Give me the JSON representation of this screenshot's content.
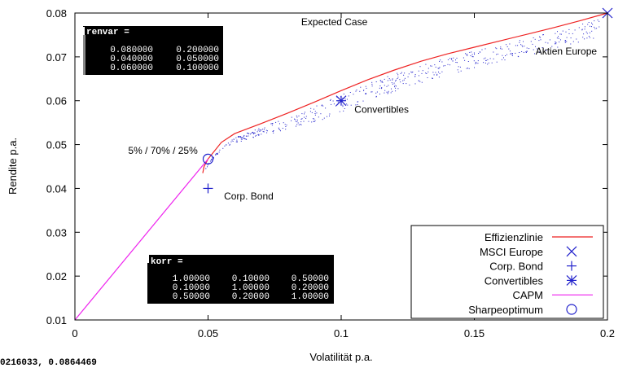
{
  "status_text": "0216033, 0.0864469",
  "chart_data": {
    "type": "line",
    "title": "Expected Case",
    "xlabel": "Volatilität p.a.",
    "ylabel": "Rendite p.a.",
    "xlim": [
      0,
      0.2
    ],
    "ylim": [
      0.01,
      0.08
    ],
    "x_ticks": [
      0,
      0.05,
      0.1,
      0.15,
      0.2
    ],
    "x_tick_labels": [
      "0",
      "0.05",
      "0.1",
      "0.15",
      "0.2"
    ],
    "y_ticks": [
      0.01,
      0.02,
      0.03,
      0.04,
      0.05,
      0.06,
      0.07,
      0.08
    ],
    "y_tick_labels": [
      "0.01",
      "0.02",
      "0.03",
      "0.04",
      "0.05",
      "0.06",
      "0.07",
      "0.08"
    ],
    "colors": {
      "efficient": "#ee2222",
      "asset": "#2222cc",
      "capm": "#ee22ee",
      "cloud": "#2222cc"
    },
    "series": [
      {
        "name": "Effizienzlinie",
        "kind": "line",
        "color": "#ee2222",
        "x": [
          0.048,
          0.0485,
          0.05,
          0.055,
          0.06,
          0.07,
          0.08,
          0.09,
          0.1,
          0.11,
          0.12,
          0.13,
          0.14,
          0.15,
          0.16,
          0.17,
          0.18,
          0.19,
          0.2
        ],
        "y": [
          0.0435,
          0.045,
          0.0467,
          0.0505,
          0.0525,
          0.0548,
          0.0572,
          0.0597,
          0.0623,
          0.0648,
          0.067,
          0.069,
          0.0707,
          0.0722,
          0.0737,
          0.0752,
          0.0767,
          0.0783,
          0.08
        ]
      },
      {
        "name": "MSCI Europe",
        "kind": "point",
        "marker": "x",
        "color": "#2222cc",
        "x": [
          0.2
        ],
        "y": [
          0.08
        ]
      },
      {
        "name": "Corp. Bond",
        "kind": "point",
        "marker": "plus",
        "color": "#2222cc",
        "x": [
          0.05
        ],
        "y": [
          0.04
        ]
      },
      {
        "name": "Convertibles",
        "kind": "point",
        "marker": "star",
        "color": "#2222cc",
        "x": [
          0.1
        ],
        "y": [
          0.06
        ]
      },
      {
        "name": "CAPM",
        "kind": "line",
        "color": "#ee22ee",
        "x": [
          0,
          0.05
        ],
        "y": [
          0.01,
          0.0467
        ]
      },
      {
        "name": "Sharpeoptimum",
        "kind": "point",
        "marker": "circle",
        "color": "#2222cc",
        "x": [
          0.05
        ],
        "y": [
          0.0467
        ]
      }
    ],
    "annotations": [
      {
        "text": "Expected Case",
        "x": 0.085,
        "y": 0.0772
      },
      {
        "text": "Aktien Europe",
        "x": 0.173,
        "y": 0.0705
      },
      {
        "text": "Convertibles",
        "x": 0.105,
        "y": 0.0573
      },
      {
        "text": "5% / 70% / 25%",
        "x": 0.02,
        "y": 0.0479
      },
      {
        "text": "Corp. Bond",
        "x": 0.056,
        "y": 0.0375
      }
    ],
    "matrix_boxes": [
      {
        "name": "renvar",
        "header": "renvar =",
        "rows": [
          [
            "0.080000",
            "0.200000"
          ],
          [
            "0.040000",
            "0.050000"
          ],
          [
            "0.060000",
            "0.100000"
          ]
        ]
      },
      {
        "name": "korr",
        "header": "korr =",
        "rows": [
          [
            "1.00000",
            "0.10000",
            "0.50000"
          ],
          [
            "0.10000",
            "1.00000",
            "0.20000"
          ],
          [
            "0.50000",
            "0.20000",
            "1.00000"
          ]
        ]
      }
    ],
    "legend": {
      "placement": "bottom-right",
      "entries": [
        "Effizienzlinie",
        "MSCI Europe",
        "Corp. Bond",
        "Convertibles",
        "CAPM",
        "Sharpeoptimum"
      ]
    }
  }
}
